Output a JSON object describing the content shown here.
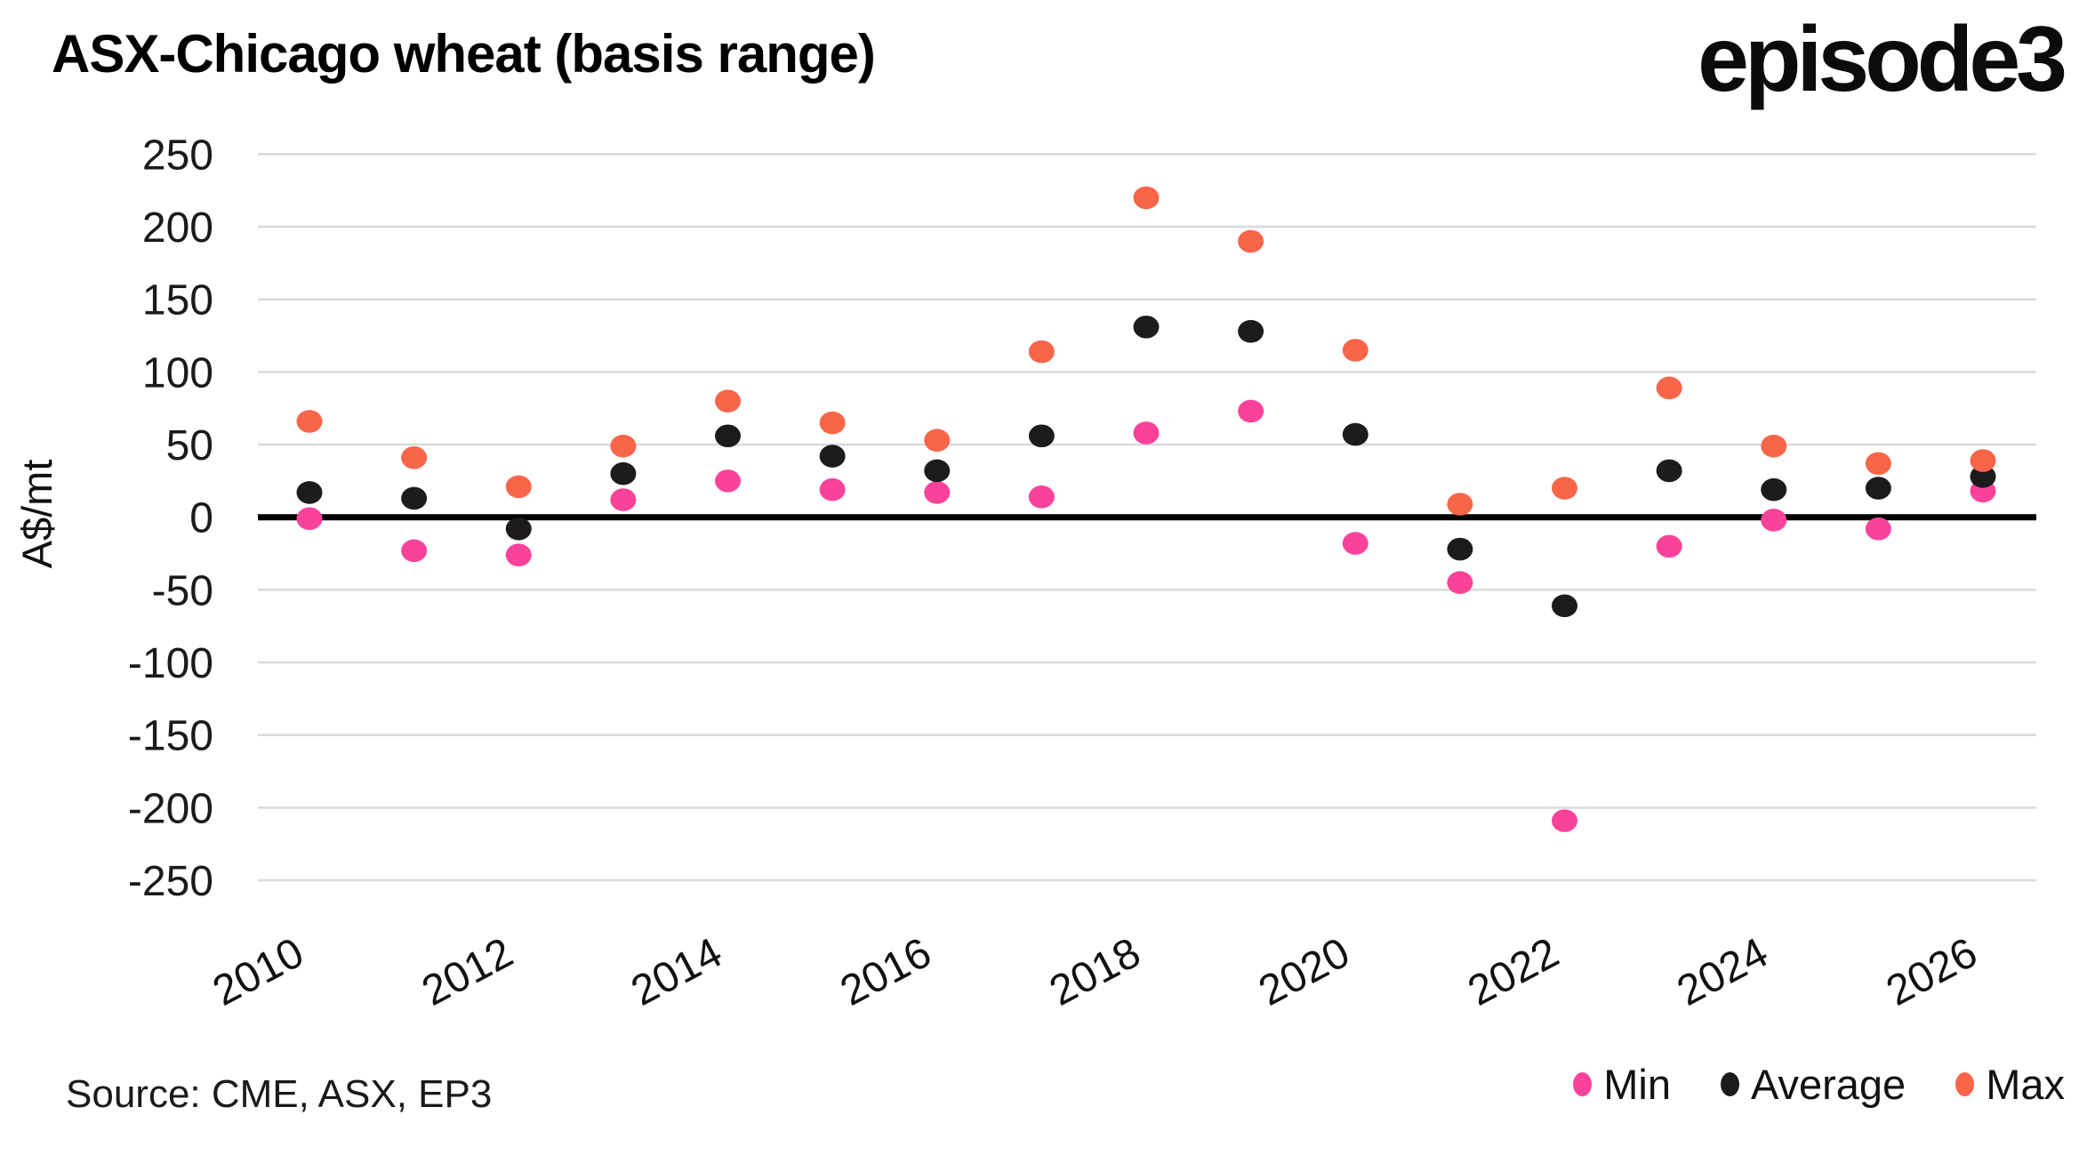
{
  "title": "ASX-Chicago wheat (basis range)",
  "branding": {
    "logo_text": "episode3"
  },
  "source": {
    "text": "Source: CME, ASX, EP3"
  },
  "chart_data": {
    "type": "scatter",
    "title": "ASX-Chicago wheat (basis range)",
    "xlabel": "",
    "ylabel": "A$/mt",
    "ylim": [
      -250,
      250
    ],
    "ytick_step": 50,
    "yticks": [
      250,
      200,
      150,
      100,
      50,
      0,
      -50,
      -100,
      -150,
      -200,
      -250
    ],
    "xticks": [
      2010,
      2012,
      2014,
      2016,
      2018,
      2020,
      2022,
      2024,
      2026
    ],
    "x": [
      2010,
      2011,
      2012,
      2013,
      2014,
      2015,
      2016,
      2017,
      2018,
      2019,
      2020,
      2021,
      2022,
      2023,
      2024,
      2025,
      2026
    ],
    "series": [
      {
        "name": "Min",
        "color": "#F9439B",
        "values": [
          -1,
          -23,
          -26,
          12,
          25,
          19,
          17,
          14,
          58,
          73,
          -18,
          -45,
          -209,
          -20,
          -2,
          -8,
          18
        ]
      },
      {
        "name": "Average",
        "color": "#1C1C1E",
        "values": [
          17,
          13,
          -8,
          30,
          56,
          42,
          32,
          56,
          131,
          128,
          57,
          -22,
          -61,
          32,
          19,
          20,
          28
        ]
      },
      {
        "name": "Max",
        "color": "#F96549",
        "values": [
          66,
          41,
          21,
          49,
          80,
          65,
          53,
          114,
          220,
          190,
          115,
          9,
          20,
          89,
          49,
          37,
          39
        ]
      }
    ],
    "grid": true,
    "zero_line": true,
    "legend_position": "bottom-right",
    "colors": {
      "gridline": "#DADADA",
      "zero_line": "#000000",
      "tick_text": "#1a1a1a"
    }
  }
}
